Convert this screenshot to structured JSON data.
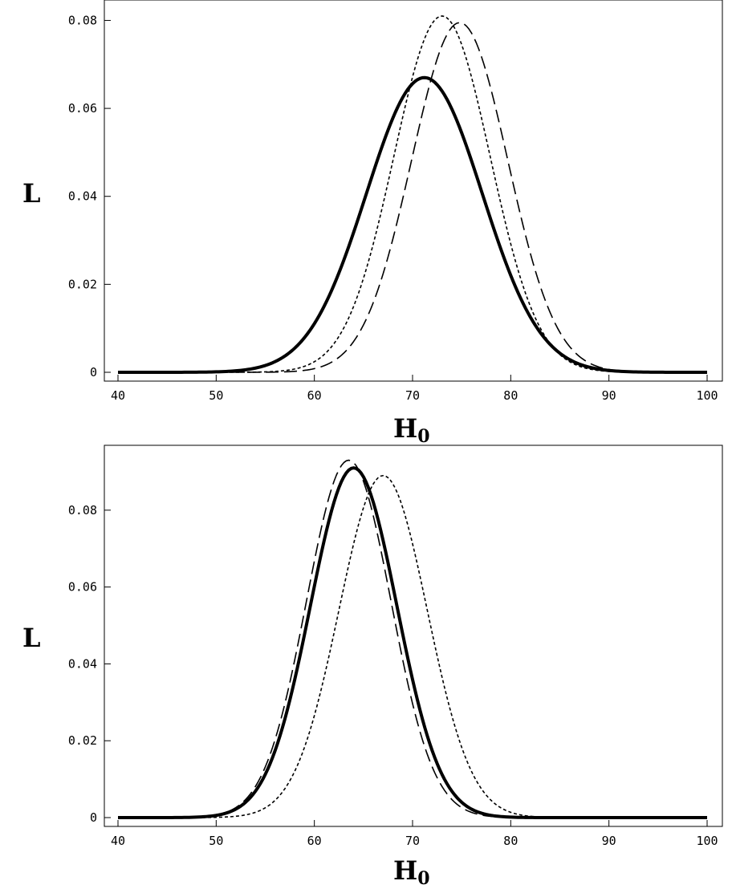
{
  "chart_data": [
    {
      "type": "line",
      "xlabel": "H",
      "xlabel_sub": "0",
      "ylabel": "L",
      "xlim": [
        40,
        100
      ],
      "ylim": [
        0,
        0.083
      ],
      "xticks": [
        "40",
        "50",
        "60",
        "70",
        "80",
        "90",
        "100"
      ],
      "yticks": [
        "0",
        "0.02",
        "0.04",
        "0.06",
        "0.08"
      ],
      "series": [
        {
          "style": "solid",
          "mean": 71.2,
          "sigma": 5.9,
          "peak": 0.067
        },
        {
          "style": "dotted",
          "mean": 73.0,
          "sigma": 4.9,
          "peak": 0.081
        },
        {
          "style": "dashed",
          "mean": 74.8,
          "sigma": 4.9,
          "peak": 0.0795
        }
      ]
    },
    {
      "type": "line",
      "xlabel": "H",
      "xlabel_sub": "0",
      "ylabel": "L",
      "xlim": [
        40,
        100
      ],
      "ylim": [
        0,
        0.095
      ],
      "xticks": [
        "40",
        "50",
        "60",
        "70",
        "80",
        "90",
        "100"
      ],
      "yticks": [
        "0",
        "0.02",
        "0.04",
        "0.06",
        "0.08"
      ],
      "series": [
        {
          "style": "solid",
          "mean": 64.0,
          "sigma": 4.4,
          "peak": 0.091
        },
        {
          "style": "dotted",
          "mean": 67.0,
          "sigma": 4.5,
          "peak": 0.089
        },
        {
          "style": "dashed",
          "mean": 63.5,
          "sigma": 4.3,
          "peak": 0.093
        }
      ]
    }
  ]
}
